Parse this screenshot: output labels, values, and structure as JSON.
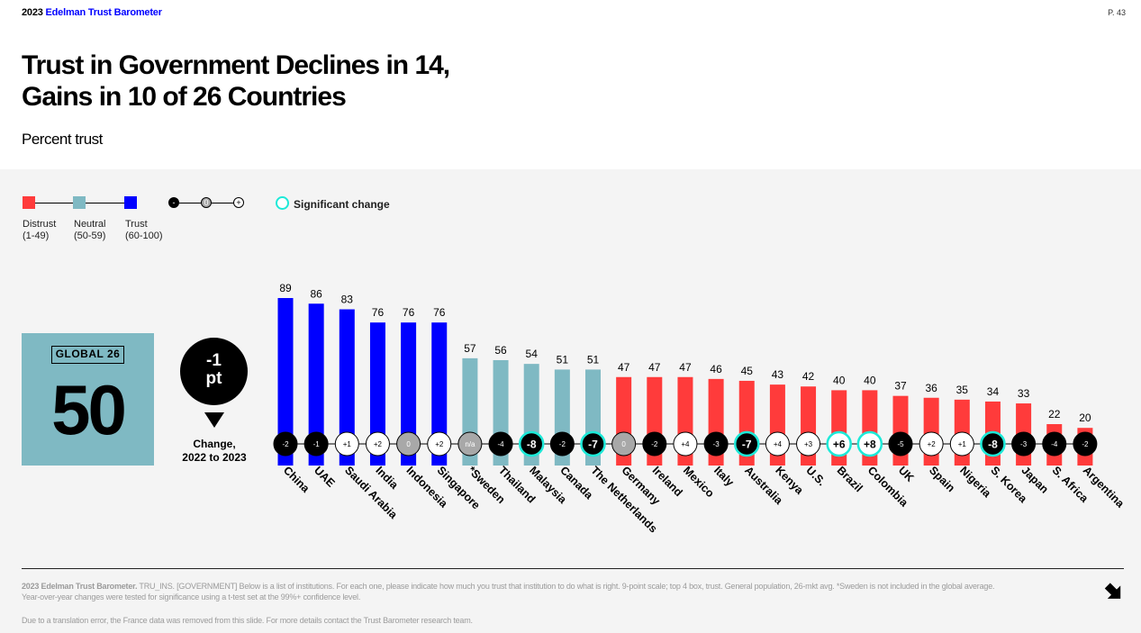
{
  "header": {
    "brand_year": "2023",
    "brand_name": "Edelman Trust Barometer",
    "page": "P. 43"
  },
  "title_line1": "Trust in Government Declines in 14,",
  "title_line2": "Gains in 10 of 26 Countries",
  "subtitle": "Percent trust",
  "legend": {
    "distrust": {
      "label": "Distrust",
      "range": "(1-49)",
      "color": "#ff3b3b"
    },
    "neutral": {
      "label": "Neutral",
      "range": "(50-59)",
      "color": "#7fb9c3"
    },
    "trust": {
      "label": "Trust",
      "range": "(60-100)",
      "color": "#0000ff"
    },
    "minus": "-",
    "zero": "0",
    "plus": "+",
    "significant": "Significant change"
  },
  "global": {
    "label": "GLOBAL 26",
    "value": "50"
  },
  "change": {
    "line1": "-1",
    "line2": "pt",
    "caption1": "Change,",
    "caption2": "2022 to 2023"
  },
  "chart_data": {
    "type": "bar",
    "ylabel": "Percent trust",
    "categories": [
      "China",
      "UAE",
      "Saudi Arabia",
      "India",
      "Indonesia",
      "Singapore",
      "*Sweden",
      "Thailand",
      "Malaysia",
      "Canada",
      "The Netherlands",
      "Germany",
      "Ireland",
      "Mexico",
      "Italy",
      "Australia",
      "Kenya",
      "U.S.",
      "Brazil",
      "Colombia",
      "UK",
      "Spain",
      "Nigeria",
      "S. Korea",
      "Japan",
      "S. Africa",
      "Argentina"
    ],
    "values": [
      89,
      86,
      83,
      76,
      76,
      76,
      57,
      56,
      54,
      51,
      51,
      47,
      47,
      47,
      46,
      45,
      43,
      42,
      40,
      40,
      37,
      36,
      35,
      34,
      33,
      22,
      20
    ],
    "changes": [
      "-2",
      "-1",
      "+1",
      "+2",
      "0",
      "+2",
      "n/a",
      "-4",
      "-8",
      "-2",
      "-7",
      "0",
      "-2",
      "+4",
      "-3",
      "-7",
      "+4",
      "+3",
      "+6",
      "+8",
      "-5",
      "+2",
      "+1",
      "-8",
      "-3",
      "-4",
      "-2"
    ],
    "significant": [
      false,
      false,
      false,
      false,
      false,
      false,
      false,
      false,
      true,
      false,
      true,
      false,
      false,
      false,
      false,
      true,
      false,
      false,
      true,
      true,
      false,
      false,
      false,
      true,
      false,
      false,
      false
    ],
    "ylim": [
      0,
      100
    ]
  },
  "footer": {
    "note_bold": "2023 Edelman Trust Barometer.",
    "note": " TRU_INS. [GOVERNMENT] Below is a list of institutions. For each one, please indicate how much you trust that institution to do what is right. 9-point scale; top 4 box, trust. General population, 26-mkt avg. *Sweden is not included in the global average. Year-over-year changes were tested for significance using a t-test set at the 99%+ confidence level.",
    "note2": "Due to a translation error, the France data was removed from this slide. For more details contact the Trust Barometer research team."
  }
}
